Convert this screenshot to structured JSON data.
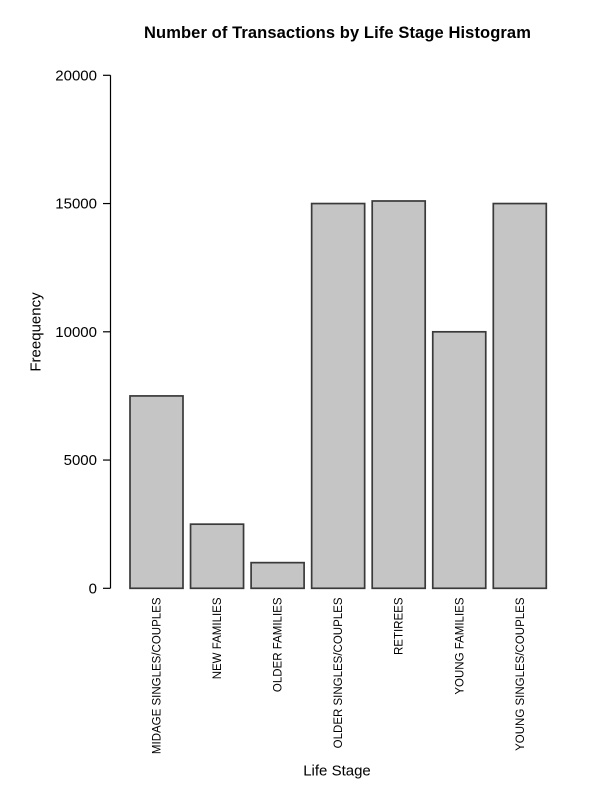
{
  "chart_data": {
    "type": "bar",
    "title": "Number of Transactions by Life Stage Histogram",
    "xlabel": "Life Stage",
    "ylabel": "Freequency",
    "categories": [
      "MIDAGE SINGLES/COUPLES",
      "NEW FAMILIES",
      "OLDER FAMILIES",
      "OLDER SINGLES/COUPLES",
      "RETIREES",
      "YOUNG FAMILIES",
      "YOUNG SINGLES/COUPLES"
    ],
    "values": [
      7500,
      2500,
      1000,
      15000,
      15100,
      10000,
      15000
    ],
    "ylim": [
      0,
      20000
    ],
    "yticks": [
      0,
      5000,
      10000,
      15000,
      20000
    ],
    "grid": false,
    "legend": null,
    "bar_fill": "#c5c5c5",
    "bar_border": "#3a3a3a",
    "axis_color": "#000000",
    "text_color": "#000000",
    "background": "#ffffff"
  }
}
